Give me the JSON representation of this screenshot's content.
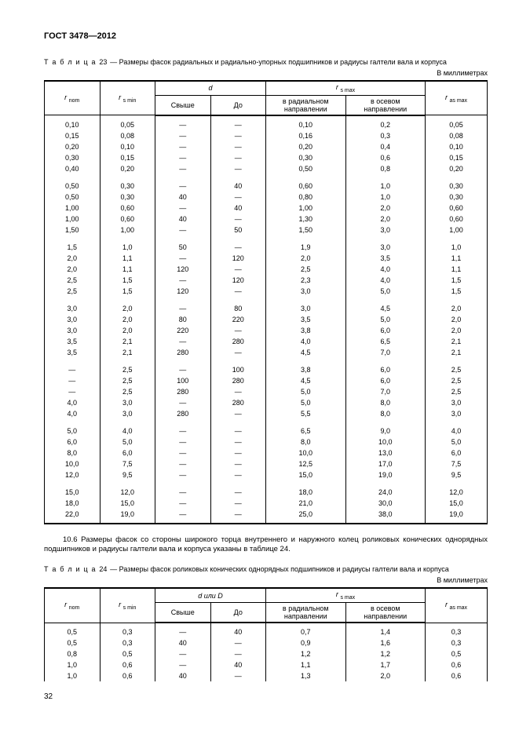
{
  "doc": {
    "header": "ГОСТ 3478—2012"
  },
  "table23": {
    "caption_prefix": "Т а б л и ц а",
    "caption_num": "23",
    "caption_text": "— Размеры фасок радиальных и радиально-упорных подшипников и радиусы галтели вала и корпуса",
    "units": "В миллиметрах",
    "headers": {
      "r_nom": "r",
      "r_nom_sub": "nom",
      "r_smin": "r",
      "r_smin_sub": "s min",
      "d": "d",
      "d_over": "Свыше",
      "d_to": "До",
      "rs_max": "r",
      "rs_max_sub": "s max",
      "rs_rad": "в радиальном направлении",
      "rs_ax": "в осевом направлении",
      "ras_max": "r",
      "ras_max_sub": "as max"
    },
    "groups": [
      [
        [
          "0,10",
          "0,05",
          "—",
          "—",
          "0,10",
          "0,2",
          "0,05"
        ],
        [
          "0,15",
          "0,08",
          "—",
          "—",
          "0,16",
          "0,3",
          "0,08"
        ],
        [
          "0,20",
          "0,10",
          "—",
          "—",
          "0,20",
          "0,4",
          "0,10"
        ],
        [
          "0,30",
          "0,15",
          "—",
          "—",
          "0,30",
          "0,6",
          "0,15"
        ],
        [
          "0,40",
          "0,20",
          "—",
          "—",
          "0,50",
          "0,8",
          "0,20"
        ]
      ],
      [
        [
          "0,50",
          "0,30",
          "—",
          "40",
          "0,60",
          "1,0",
          "0,30"
        ],
        [
          "0,50",
          "0,30",
          "40",
          "—",
          "0,80",
          "1,0",
          "0,30"
        ],
        [
          "1,00",
          "0,60",
          "—",
          "40",
          "1,00",
          "2,0",
          "0,60"
        ],
        [
          "1,00",
          "0,60",
          "40",
          "—",
          "1,30",
          "2,0",
          "0,60"
        ],
        [
          "1,50",
          "1,00",
          "—",
          "50",
          "1,50",
          "3,0",
          "1,00"
        ]
      ],
      [
        [
          "1,5",
          "1,0",
          "50",
          "—",
          "1,9",
          "3,0",
          "1,0"
        ],
        [
          "2,0",
          "1,1",
          "—",
          "120",
          "2,0",
          "3,5",
          "1,1"
        ],
        [
          "2,0",
          "1,1",
          "120",
          "—",
          "2,5",
          "4,0",
          "1,1"
        ],
        [
          "2,5",
          "1,5",
          "—",
          "120",
          "2,3",
          "4,0",
          "1,5"
        ],
        [
          "2,5",
          "1,5",
          "120",
          "—",
          "3,0",
          "5,0",
          "1,5"
        ]
      ],
      [
        [
          "3,0",
          "2,0",
          "—",
          "80",
          "3,0",
          "4,5",
          "2,0"
        ],
        [
          "3,0",
          "2,0",
          "80",
          "220",
          "3,5",
          "5,0",
          "2,0"
        ],
        [
          "3,0",
          "2,0",
          "220",
          "—",
          "3,8",
          "6,0",
          "2,0"
        ],
        [
          "3,5",
          "2,1",
          "—",
          "280",
          "4,0",
          "6,5",
          "2,1"
        ],
        [
          "3,5",
          "2,1",
          "280",
          "—",
          "4,5",
          "7,0",
          "2,1"
        ]
      ],
      [
        [
          "—",
          "2,5",
          "—",
          "100",
          "3,8",
          "6,0",
          "2,5"
        ],
        [
          "—",
          "2,5",
          "100",
          "280",
          "4,5",
          "6,0",
          "2,5"
        ],
        [
          "—",
          "2,5",
          "280",
          "—",
          "5,0",
          "7,0",
          "2,5"
        ],
        [
          "4,0",
          "3,0",
          "—",
          "280",
          "5,0",
          "8,0",
          "3,0"
        ],
        [
          "4,0",
          "3,0",
          "280",
          "—",
          "5,5",
          "8,0",
          "3,0"
        ]
      ],
      [
        [
          "5,0",
          "4,0",
          "—",
          "—",
          "6,5",
          "9,0",
          "4,0"
        ],
        [
          "6,0",
          "5,0",
          "—",
          "—",
          "8,0",
          "10,0",
          "5,0"
        ],
        [
          "8,0",
          "6,0",
          "—",
          "—",
          "10,0",
          "13,0",
          "6,0"
        ],
        [
          "10,0",
          "7,5",
          "—",
          "—",
          "12,5",
          "17,0",
          "7,5"
        ],
        [
          "12,0",
          "9,5",
          "—",
          "—",
          "15,0",
          "19,0",
          "9,5"
        ]
      ],
      [
        [
          "15,0",
          "12,0",
          "—",
          "—",
          "18,0",
          "24,0",
          "12,0"
        ],
        [
          "18,0",
          "15,0",
          "—",
          "—",
          "21,0",
          "30,0",
          "15,0"
        ],
        [
          "22,0",
          "19,0",
          "—",
          "—",
          "25,0",
          "38,0",
          "19,0"
        ]
      ]
    ]
  },
  "para106": "10.6  Размеры фасок со стороны широкого торца внутреннего и наружного колец роликовых конических однорядных подшипников и радиусы галтели вала и корпуса указаны в таблице 24.",
  "table24": {
    "caption_prefix": "Т а б л и ц а",
    "caption_num": "24",
    "caption_text": "— Размеры фасок роликовых конических однорядных подшипников и радиусы галтели вала и корпуса",
    "units": "В миллиметрах",
    "headers": {
      "r_nom": "r",
      "r_nom_sub": "nom",
      "r_smin": "r",
      "r_smin_sub": "s min",
      "d": "d или D",
      "d_over": "Свыше",
      "d_to": "До",
      "rs_max": "r",
      "rs_max_sub": "s max",
      "rs_rad": "в радиальном направлении",
      "rs_ax": "в осевом направлении",
      "ras_max": "r",
      "ras_max_sub": "as max"
    },
    "groups": [
      [
        [
          "0,5",
          "0,3",
          "—",
          "40",
          "0,7",
          "1,4",
          "0,3"
        ],
        [
          "0,5",
          "0,3",
          "40",
          "—",
          "0,9",
          "1,6",
          "0,3"
        ],
        [
          "0,8",
          "0,5",
          "—",
          "—",
          "1,2",
          "1,2",
          "0,5"
        ],
        [
          "1,0",
          "0,6",
          "—",
          "40",
          "1,1",
          "1,7",
          "0,6"
        ],
        [
          "1,0",
          "0,6",
          "40",
          "—",
          "1,3",
          "2,0",
          "0,6"
        ]
      ]
    ]
  },
  "page_number": "32"
}
